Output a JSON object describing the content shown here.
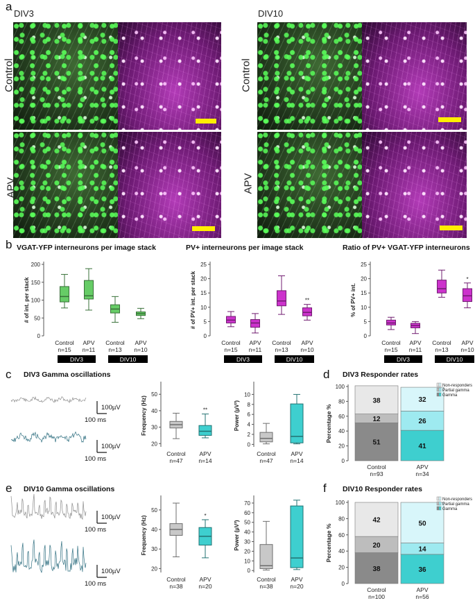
{
  "panel_labels": {
    "a": "a",
    "b": "b",
    "c": "c",
    "d": "d",
    "e": "e",
    "f": "f"
  },
  "panel_a": {
    "col_div3": "DIV3",
    "col_div10": "DIV10",
    "row_control": "Control",
    "row_apv": "APV"
  },
  "panel_b": {
    "plots": [
      {
        "title": "VGAT-YFP interneurons per image stack",
        "ylabel": "# of int. per stack",
        "ylim": [
          0,
          200
        ],
        "yticks": [
          "0",
          "50",
          "100",
          "150",
          "200"
        ],
        "groups": [
          {
            "label": "Control",
            "n": "n=15",
            "color": "#66cc66",
            "median": 110,
            "q1": 95,
            "q3": 138,
            "lo": 78,
            "hi": 172,
            "star": ""
          },
          {
            "label": "APV",
            "n": "n=11",
            "color": "#66cc66",
            "median": 112,
            "q1": 103,
            "q3": 155,
            "lo": 72,
            "hi": 188,
            "star": ""
          },
          {
            "label": "Control",
            "n": "n=13",
            "color": "#66cc66",
            "median": 75,
            "q1": 64,
            "q3": 87,
            "lo": 38,
            "hi": 110,
            "star": ""
          },
          {
            "label": "APV",
            "n": "n=10",
            "color": "#66cc66",
            "median": 62,
            "q1": 57,
            "q3": 67,
            "lo": 48,
            "hi": 77,
            "star": ""
          }
        ]
      },
      {
        "title": "PV+ interneurons per image stack",
        "ylabel": "# of PV+ int. per stack",
        "ylim": [
          0,
          25
        ],
        "yticks": [
          "0",
          "5",
          "10",
          "15",
          "20",
          "25"
        ],
        "groups": [
          {
            "label": "Control",
            "n": "n=15",
            "color": "#cc33cc",
            "median": 5.5,
            "q1": 4.5,
            "q3": 6.8,
            "lo": 3.2,
            "hi": 8.5,
            "star": ""
          },
          {
            "label": "APV",
            "n": "n=11",
            "color": "#cc33cc",
            "median": 4.5,
            "q1": 3,
            "q3": 5.7,
            "lo": 1,
            "hi": 7.8,
            "star": ""
          },
          {
            "label": "Control",
            "n": "n=13",
            "color": "#cc33cc",
            "median": 12.2,
            "q1": 10.5,
            "q3": 15.8,
            "lo": 7.5,
            "hi": 21,
            "star": ""
          },
          {
            "label": "APV",
            "n": "n=10",
            "color": "#cc33cc",
            "median": 8.2,
            "q1": 7,
            "q3": 9.8,
            "lo": 5.5,
            "hi": 11,
            "star": "**"
          }
        ]
      },
      {
        "title": "Ratio of PV+ VGAT-YFP interneurons",
        "ylabel": "% of PV+ int.",
        "ylim": [
          0,
          25
        ],
        "yticks": [
          "0",
          "5",
          "10",
          "15",
          "20",
          "25"
        ],
        "groups": [
          {
            "label": "Control",
            "n": "n=15",
            "color": "#cc33cc",
            "median": 4.5,
            "q1": 3.8,
            "q3": 5.5,
            "lo": 2.2,
            "hi": 6.5,
            "star": ""
          },
          {
            "label": "APV",
            "n": "n=11",
            "color": "#cc33cc",
            "median": 3.6,
            "q1": 2.8,
            "q3": 4.4,
            "lo": 0.8,
            "hi": 5,
            "star": ""
          },
          {
            "label": "Control",
            "n": "n=13",
            "color": "#cc33cc",
            "median": 16.5,
            "q1": 15,
            "q3": 19.5,
            "lo": 13.5,
            "hi": 23,
            "star": ""
          },
          {
            "label": "APV",
            "n": "n=10",
            "color": "#cc33cc",
            "median": 14,
            "q1": 12,
            "q3": 16.5,
            "lo": 9.8,
            "hi": 18.5,
            "star": "*"
          }
        ]
      }
    ],
    "badges": [
      "DIV3",
      "DIV10"
    ]
  },
  "panel_c": {
    "title": "DIV3 Gamma oscillations",
    "scale_v": "100µV",
    "scale_t": "100 ms",
    "freq": {
      "ylabel": "Frequency (Hz)",
      "yticks": [
        "20",
        "30",
        "40",
        "50"
      ],
      "ylim": [
        18,
        56
      ],
      "groups": [
        {
          "label": "Control",
          "n": "n=47",
          "color": "#c8c8c8",
          "median": 31.5,
          "q1": 29.5,
          "q3": 33.5,
          "lo": 23,
          "hi": 38.5,
          "star": ""
        },
        {
          "label": "APV",
          "n": "n=14",
          "color": "#3ecfcf",
          "median": 27.5,
          "q1": 25,
          "q3": 31,
          "lo": 23.5,
          "hi": 38,
          "star": "**"
        }
      ]
    },
    "power": {
      "ylabel": "Power (µV²)",
      "yticks": [
        "0",
        "2",
        "4",
        "6",
        "8",
        "10"
      ],
      "ylim": [
        -0.5,
        12
      ],
      "groups": [
        {
          "label": "Control",
          "n": "n=47",
          "color": "#c8c8c8",
          "median": 1.2,
          "q1": 0.5,
          "q3": 2.4,
          "lo": 0.1,
          "hi": 4.2,
          "star": ""
        },
        {
          "label": "APV",
          "n": "n=14",
          "color": "#3ecfcf",
          "median": 1.6,
          "q1": 0.3,
          "q3": 8.1,
          "lo": 0.1,
          "hi": 10,
          "star": ""
        }
      ]
    }
  },
  "panel_d": {
    "title": "DIV3 Responder rates",
    "ylabel": "Percentage %",
    "yticks": [
      "0",
      "20",
      "40",
      "60",
      "80",
      "100"
    ],
    "legend": [
      "Non-responders",
      "Partial gamma",
      "Gamma"
    ],
    "bars": [
      {
        "label": "Control",
        "n": "n=93",
        "gamma": 51,
        "partial": 12,
        "non": 38,
        "colors": [
          "#8a8a8a",
          "#bdbdbd",
          "#e8e8e8"
        ]
      },
      {
        "label": "APV",
        "n": "n=34",
        "gamma": 41,
        "partial": 26,
        "non": 32,
        "colors": [
          "#3ecfcf",
          "#9eeaf0",
          "#d8f6fa"
        ]
      }
    ]
  },
  "panel_e": {
    "title": "DIV10 Gamma oscillations",
    "scale_v": "100µV",
    "scale_t": "100 ms",
    "freq": {
      "ylabel": "Frequency (Hz)",
      "yticks": [
        "20",
        "30",
        "40",
        "50"
      ],
      "ylim": [
        18,
        56
      ],
      "groups": [
        {
          "label": "Control",
          "n": "n=38",
          "color": "#c8c8c8",
          "median": 40,
          "q1": 37,
          "q3": 43,
          "lo": 26,
          "hi": 53.5,
          "star": ""
        },
        {
          "label": "APV",
          "n": "n=20",
          "color": "#3ecfcf",
          "median": 36.5,
          "q1": 32,
          "q3": 41,
          "lo": 25.5,
          "hi": 45,
          "star": "*"
        }
      ]
    },
    "power": {
      "ylabel": "Power (µV²)",
      "yticks": [
        "0",
        "10",
        "20",
        "30",
        "40",
        "50",
        "60",
        "70"
      ],
      "ylim": [
        -2,
        75
      ],
      "groups": [
        {
          "label": "Control",
          "n": "n=38",
          "color": "#c8c8c8",
          "median": 5,
          "q1": 2,
          "q3": 27,
          "lo": 0.5,
          "hi": 51,
          "star": ""
        },
        {
          "label": "APV",
          "n": "n=20",
          "color": "#3ecfcf",
          "median": 13,
          "q1": 3,
          "q3": 67,
          "lo": 1,
          "hi": 73,
          "star": ""
        }
      ]
    }
  },
  "panel_f": {
    "title": "DIV10 Responder rates",
    "ylabel": "Percentage %",
    "yticks": [
      "0",
      "20",
      "40",
      "60",
      "80",
      "100"
    ],
    "legend": [
      "Non-responders",
      "Partial gamma",
      "Gamma"
    ],
    "bars": [
      {
        "label": "Control",
        "n": "n=100",
        "gamma": 38,
        "partial": 20,
        "non": 42,
        "colors": [
          "#8a8a8a",
          "#bdbdbd",
          "#e8e8e8"
        ]
      },
      {
        "label": "APV",
        "n": "n=56",
        "gamma": 36,
        "partial": 14,
        "non": 50,
        "colors": [
          "#3ecfcf",
          "#9eeaf0",
          "#d8f6fa"
        ]
      }
    ]
  },
  "chart_data": [
    {
      "type": "box",
      "title": "VGAT-YFP interneurons per image stack",
      "ylabel": "# of int. per stack",
      "categories": [
        "Control DIV3",
        "APV DIV3",
        "Control DIV10",
        "APV DIV10"
      ],
      "medians": [
        110,
        112,
        75,
        62
      ],
      "ylim": [
        0,
        200
      ]
    },
    {
      "type": "box",
      "title": "PV+ interneurons per image stack",
      "ylabel": "# of PV+ int. per stack",
      "categories": [
        "Control DIV3",
        "APV DIV3",
        "Control DIV10",
        "APV DIV10"
      ],
      "medians": [
        5.5,
        4.5,
        12.2,
        8.2
      ],
      "ylim": [
        0,
        25
      ]
    },
    {
      "type": "box",
      "title": "Ratio of PV+ VGAT-YFP interneurons",
      "ylabel": "% of PV+ int.",
      "categories": [
        "Control DIV3",
        "APV DIV3",
        "Control DIV10",
        "APV DIV10"
      ],
      "medians": [
        4.5,
        3.6,
        16.5,
        14
      ],
      "ylim": [
        0,
        25
      ]
    },
    {
      "type": "box",
      "title": "DIV3 Frequency",
      "ylabel": "Frequency (Hz)",
      "categories": [
        "Control",
        "APV"
      ],
      "medians": [
        31.5,
        27.5
      ]
    },
    {
      "type": "box",
      "title": "DIV3 Power",
      "ylabel": "Power (µV²)",
      "categories": [
        "Control",
        "APV"
      ],
      "medians": [
        1.2,
        1.6
      ]
    },
    {
      "type": "bar",
      "stacked": true,
      "title": "DIV3 Responder rates",
      "categories": [
        "Control",
        "APV"
      ],
      "series": [
        {
          "name": "Gamma",
          "values": [
            51,
            41
          ]
        },
        {
          "name": "Partial gamma",
          "values": [
            12,
            26
          ]
        },
        {
          "name": "Non-responders",
          "values": [
            38,
            32
          ]
        }
      ]
    },
    {
      "type": "box",
      "title": "DIV10 Frequency",
      "ylabel": "Frequency (Hz)",
      "categories": [
        "Control",
        "APV"
      ],
      "medians": [
        40,
        36.5
      ]
    },
    {
      "type": "box",
      "title": "DIV10 Power",
      "ylabel": "Power (µV²)",
      "categories": [
        "Control",
        "APV"
      ],
      "medians": [
        5,
        13
      ]
    },
    {
      "type": "bar",
      "stacked": true,
      "title": "DIV10 Responder rates",
      "categories": [
        "Control",
        "APV"
      ],
      "series": [
        {
          "name": "Gamma",
          "values": [
            38,
            36
          ]
        },
        {
          "name": "Partial gamma",
          "values": [
            20,
            14
          ]
        },
        {
          "name": "Non-responders",
          "values": [
            42,
            50
          ]
        }
      ]
    }
  ]
}
